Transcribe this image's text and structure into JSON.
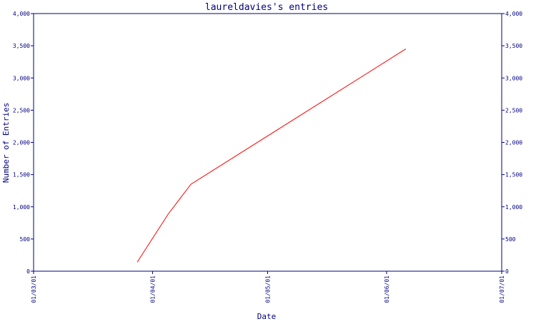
{
  "chart_data": {
    "type": "line",
    "title": "laureldavies's entries",
    "xlabel": "Date",
    "ylabel": "Number of Entries",
    "x_tick_labels": [
      "01/03/01",
      "01/04/01",
      "01/05/01",
      "01/06/01",
      "01/07/01"
    ],
    "x_ticks": [
      "2001-03-01",
      "2001-04-01",
      "2001-05-01",
      "2001-06-01",
      "2001-07-01"
    ],
    "xlim": [
      "2001-03-01",
      "2001-07-01"
    ],
    "ylim": [
      0,
      4000
    ],
    "y_ticks": [
      0,
      500,
      1000,
      1500,
      2000,
      2500,
      3000,
      3500,
      4000
    ],
    "y_tick_labels": [
      "0",
      "500",
      "1,000",
      "1,500",
      "2,000",
      "2,500",
      "3,000",
      "3,500",
      "4,000"
    ],
    "right_axis": true,
    "grid": false,
    "series": [
      {
        "color": "#ff0000",
        "points": [
          {
            "x": "2001-03-28",
            "y": 140
          },
          {
            "x": "2001-04-05",
            "y": 880
          },
          {
            "x": "2001-04-11",
            "y": 1350
          },
          {
            "x": "2001-06-06",
            "y": 3450
          }
        ]
      }
    ],
    "colors": {
      "axis": "#000080",
      "text": "#000080",
      "background": "#ffffff"
    }
  }
}
